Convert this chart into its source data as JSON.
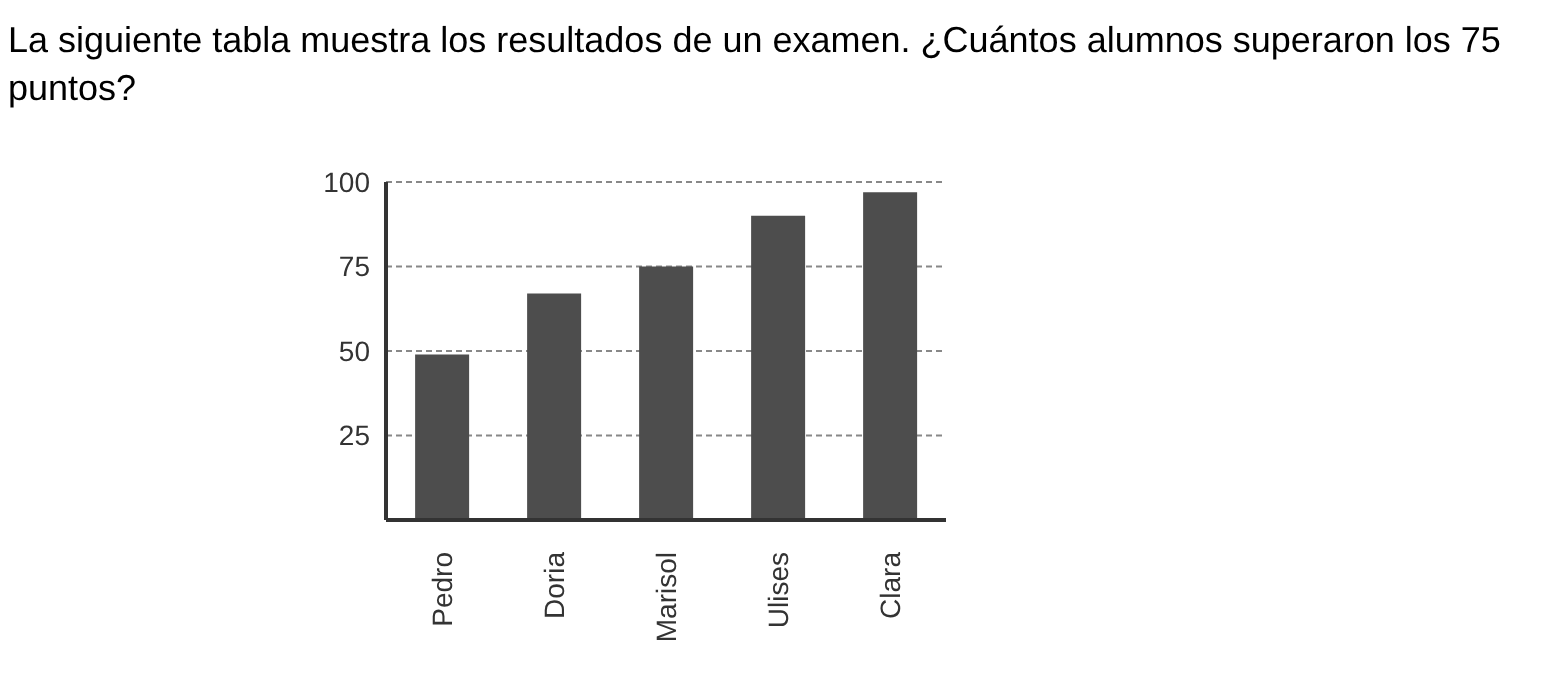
{
  "chart_data": {
    "type": "bar",
    "title": "La siguiente tabla muestra los resultados de un examen. ¿Cuántos alumnos superaron los 75 puntos?",
    "categories": [
      "Pedro",
      "Doria",
      "Marisol",
      "Ulises",
      "Clara"
    ],
    "values": [
      49,
      67,
      75,
      90,
      97
    ],
    "color": "#4d4d4d",
    "ylim": [
      0,
      100
    ],
    "yticks": [
      25,
      50,
      75,
      100
    ],
    "grid": "y"
  }
}
